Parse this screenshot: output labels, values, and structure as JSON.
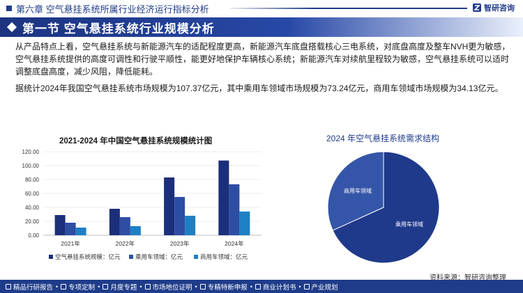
{
  "header": {
    "title": "第六章 空气悬挂系统所属行业经济运行指标分析",
    "logo_text": "智研咨询"
  },
  "section": {
    "title": "第一节 空气悬挂系统行业规模分析"
  },
  "paragraphs": {
    "p1": "从产品特点上看，空气悬挂系统与新能源汽车的适配程度更高，新能源汽车底盘搭载核心三电系统，对底盘高度及整车NVH更为敏感，空气悬挂系统提供的高度可调性和行驶平顺性，能更好地保护车辆核心系统；新能源汽车对续航里程较为敏感，空气悬挂系统可以适时调整底盘高度，减少风阻，降低能耗。",
    "p2": "据统计2024年我国空气悬挂系统市场规模为107.37亿元，其中乘用车领域市场规模为73.24亿元，商用车领域市场规模为34.13亿元。"
  },
  "colors": {
    "series1": "#1b2f7a",
    "series2": "#2e4ea3",
    "series3": "#1f7fc4",
    "pie_passenger": "#1f3a8a",
    "pie_commercial": "#3556a8"
  },
  "chart_data": [
    {
      "type": "bar",
      "title": "2021-2024 年中国空气悬挂系统规模统计图",
      "categories": [
        "2021年",
        "2022年",
        "2023年",
        "2024年"
      ],
      "series": [
        {
          "name": "空气悬挂系统规模：亿元",
          "values": [
            29,
            38,
            83,
            107.37
          ]
        },
        {
          "name": "乘用车领域：亿元",
          "values": [
            18,
            26,
            55,
            73.24
          ]
        },
        {
          "name": "商用车领域：亿元",
          "values": [
            11,
            13,
            28,
            34.13
          ]
        }
      ],
      "yticks": [
        "0.00",
        "20.00",
        "40.00",
        "60.00",
        "80.00",
        "100.00",
        "120.00"
      ],
      "ylim": [
        0,
        120
      ],
      "legend": "bottom"
    },
    {
      "type": "pie",
      "title": "2024 年空气悬挂系统需求结构",
      "slices": [
        {
          "label": "乘用车领域",
          "value": 73.24
        },
        {
          "label": "商用车领域",
          "value": 34.13
        }
      ]
    }
  ],
  "source": "资料来源：智研咨询整理",
  "footer": {
    "items": [
      "精品行研报告",
      "专项定制",
      "月度专题",
      "市场地位证明",
      "专精特新申报",
      "商业计划书",
      "产业规划"
    ]
  }
}
